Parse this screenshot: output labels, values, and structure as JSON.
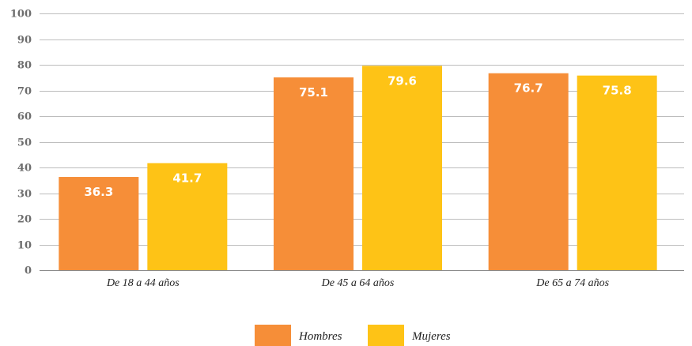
{
  "chart_data": {
    "type": "bar",
    "categories": [
      "De 18 a 44 años",
      "De 45 a 64 años",
      "De 65 a 74 años"
    ],
    "series": [
      {
        "name": "Hombres",
        "values": [
          36.3,
          75.1,
          76.7
        ],
        "color": "#f68e38"
      },
      {
        "name": "Mujeres",
        "values": [
          41.7,
          79.6,
          75.8
        ],
        "color": "#fec316"
      }
    ],
    "ylim": [
      0,
      100
    ],
    "yticks": [
      0,
      10,
      20,
      30,
      40,
      50,
      60,
      70,
      80,
      90,
      100
    ],
    "grid": true,
    "legend_position": "bottom",
    "data_labels": true
  }
}
